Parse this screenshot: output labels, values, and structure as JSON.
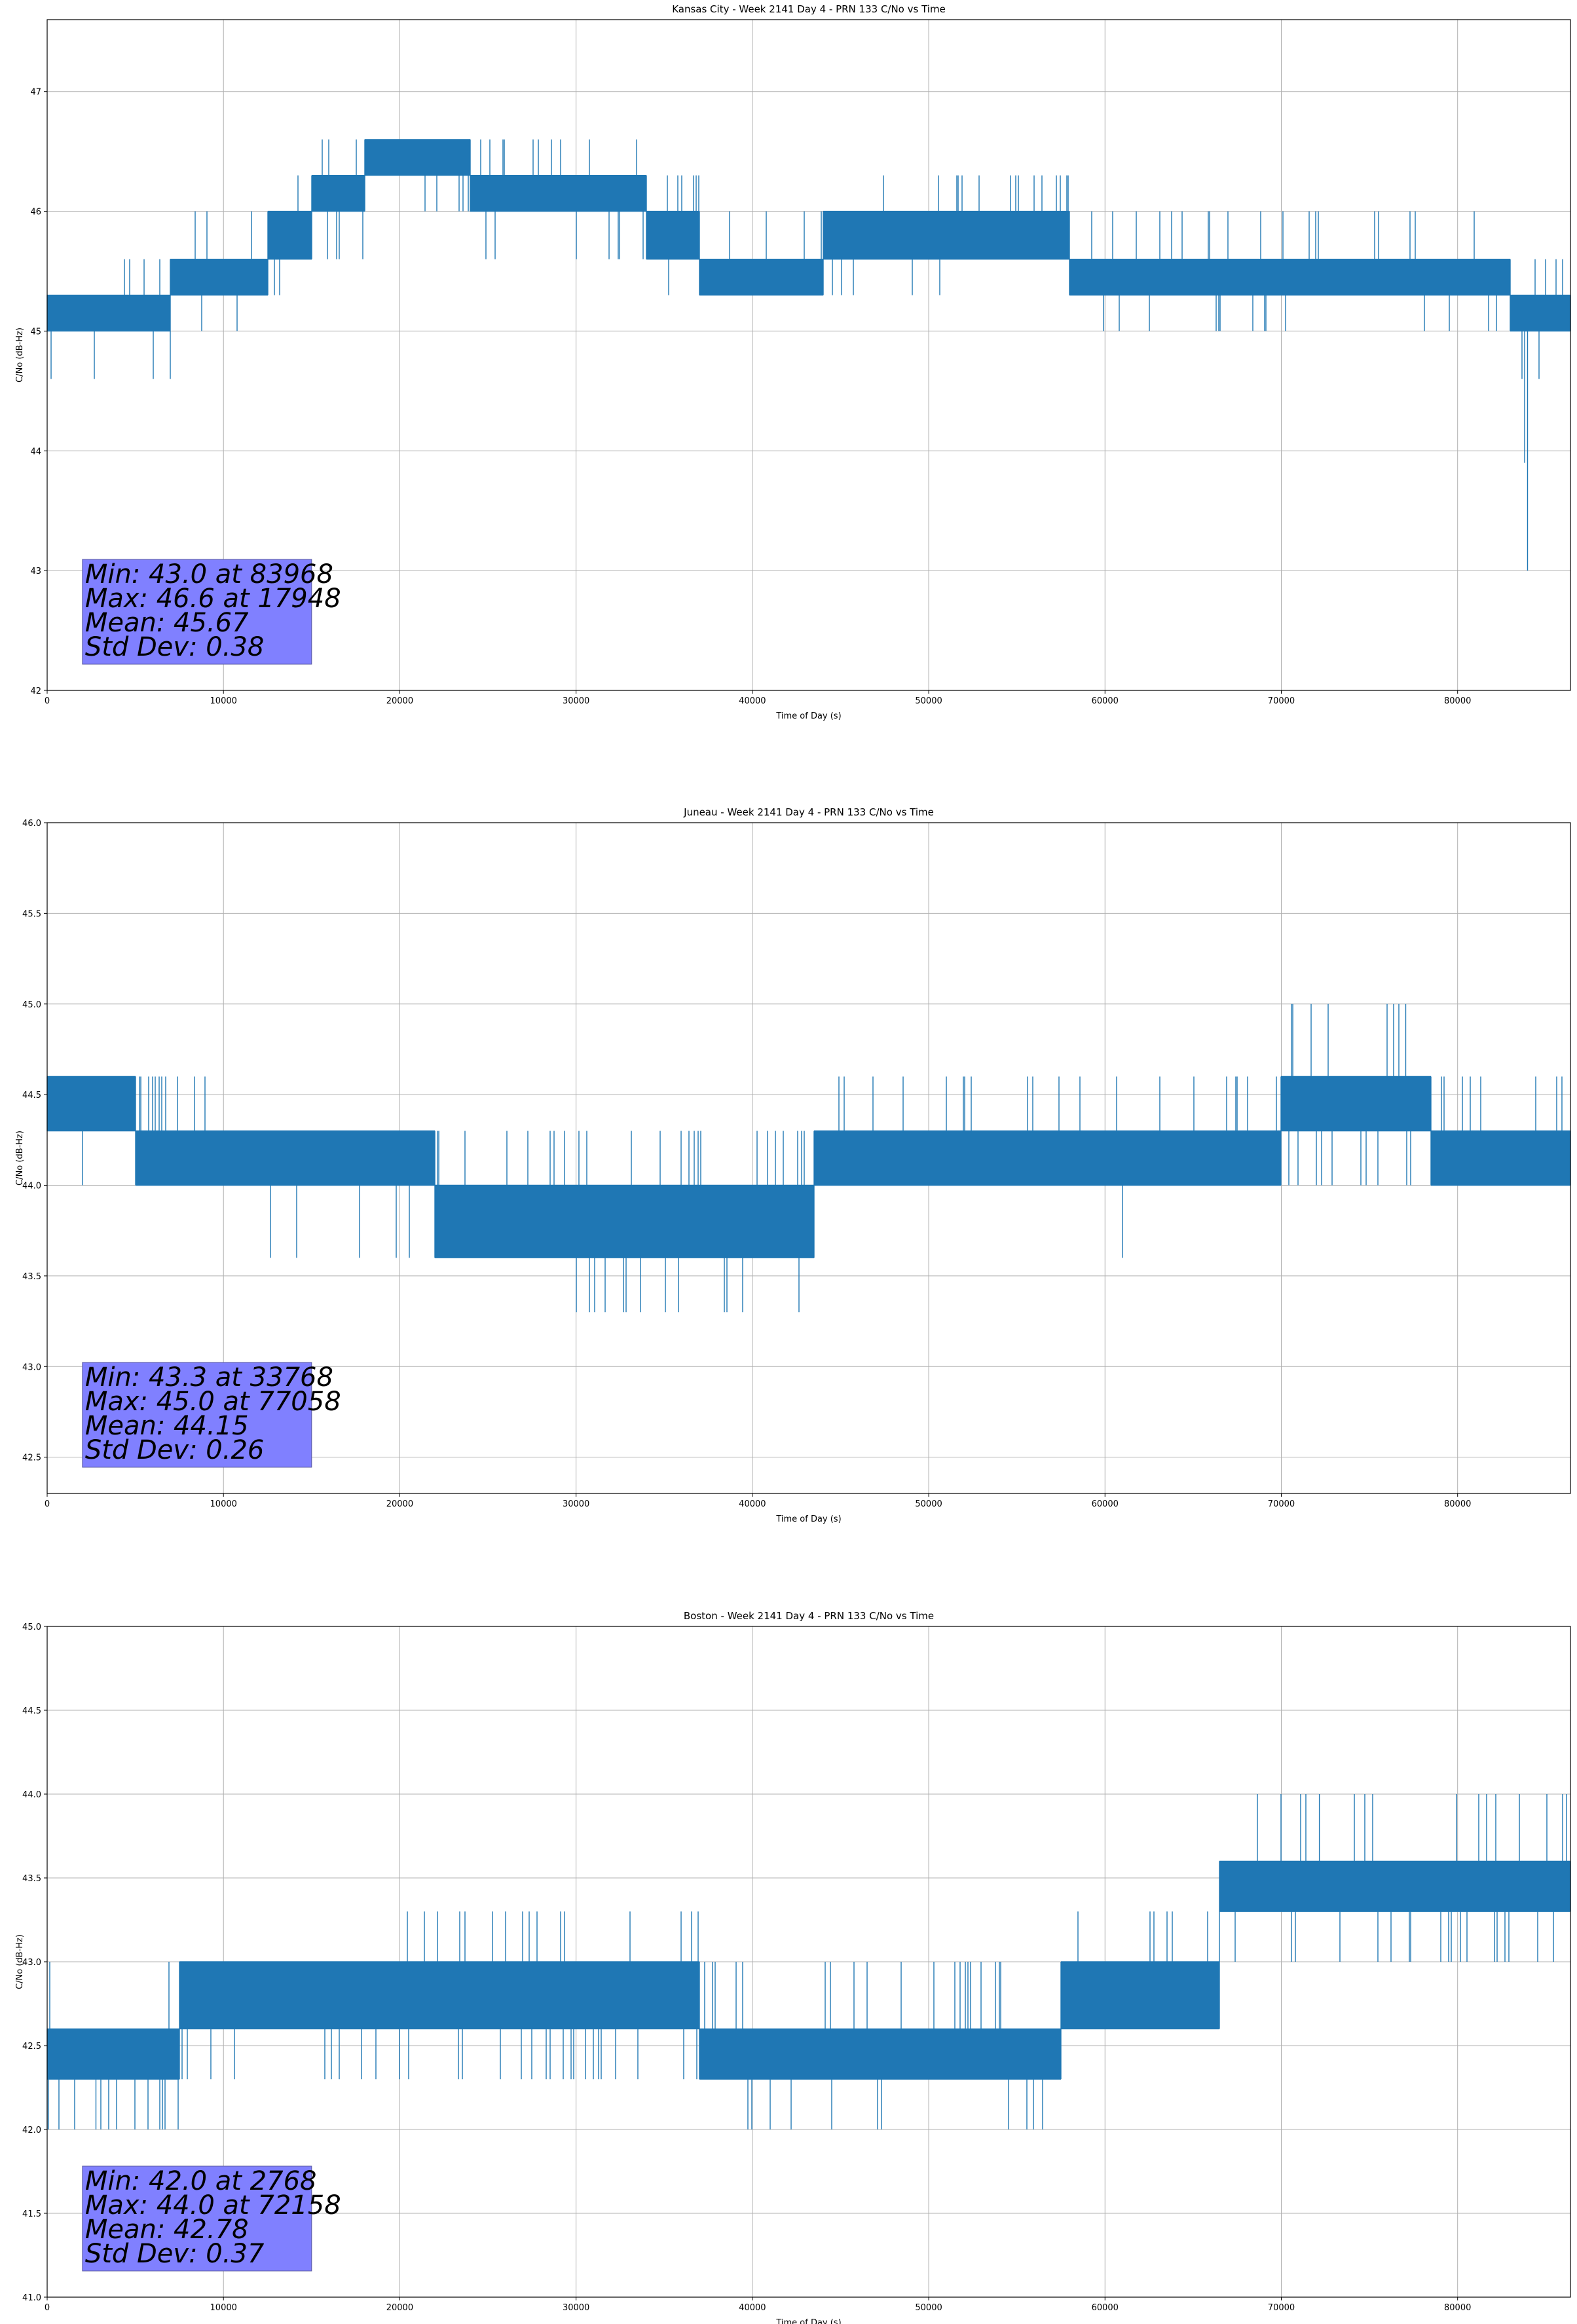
{
  "chart_data": [
    {
      "type": "line",
      "title": "Kansas City - Week 2141 Day 4 - PRN 133 C/No vs Time",
      "xlabel": "Time of Day (s)",
      "ylabel": "C/No (dB-Hz)",
      "xlim": [
        0,
        86400
      ],
      "ylim": [
        42,
        47.6
      ],
      "xticks": [
        0,
        10000,
        20000,
        30000,
        40000,
        50000,
        60000,
        70000,
        80000
      ],
      "yticks": [
        42,
        43,
        44,
        45,
        46,
        47
      ],
      "ytick_labels": [
        "42",
        "43",
        "44",
        "45",
        "46",
        "47"
      ],
      "grid": true,
      "series_color": "#1f77b4",
      "bands": [
        {
          "x0": 0,
          "x1": 7000,
          "lo": 45.0,
          "hi": 45.3,
          "spikes_up": [
            45.6
          ],
          "spikes_down": [
            44.6
          ]
        },
        {
          "x0": 7000,
          "x1": 12500,
          "lo": 45.3,
          "hi": 45.6,
          "spikes_up": [
            46.0
          ],
          "spikes_down": [
            45.0
          ]
        },
        {
          "x0": 12500,
          "x1": 15000,
          "lo": 45.6,
          "hi": 46.0,
          "spikes_up": [
            46.3
          ],
          "spikes_down": [
            45.3
          ]
        },
        {
          "x0": 15000,
          "x1": 18000,
          "lo": 46.0,
          "hi": 46.3,
          "spikes_up": [
            46.6
          ],
          "spikes_down": [
            45.6
          ]
        },
        {
          "x0": 18000,
          "x1": 24000,
          "lo": 46.3,
          "hi": 46.6,
          "spikes_up": [],
          "spikes_down": [
            46.0
          ]
        },
        {
          "x0": 24000,
          "x1": 34000,
          "lo": 46.0,
          "hi": 46.3,
          "spikes_up": [
            46.6
          ],
          "spikes_down": [
            45.6
          ]
        },
        {
          "x0": 34000,
          "x1": 37000,
          "lo": 45.6,
          "hi": 46.0,
          "spikes_up": [
            46.3
          ],
          "spikes_down": [
            45.3
          ]
        },
        {
          "x0": 37000,
          "x1": 44000,
          "lo": 45.3,
          "hi": 45.6,
          "spikes_up": [
            46.0
          ],
          "spikes_down": [
            45.3
          ]
        },
        {
          "x0": 44000,
          "x1": 58000,
          "lo": 45.6,
          "hi": 46.0,
          "spikes_up": [
            46.3
          ],
          "spikes_down": [
            45.3
          ]
        },
        {
          "x0": 58000,
          "x1": 83000,
          "lo": 45.3,
          "hi": 45.6,
          "spikes_up": [
            46.0
          ],
          "spikes_down": [
            45.0
          ]
        },
        {
          "x0": 83000,
          "x1": 86400,
          "lo": 45.0,
          "hi": 45.3,
          "spikes_up": [
            45.6
          ],
          "spikes_down": [
            44.6
          ]
        }
      ],
      "extra_spikes": [
        {
          "x": 83968,
          "y": 43.0
        },
        {
          "x": 83800,
          "y": 43.9
        }
      ],
      "stats": {
        "min": "Min: 43.0 at 83968",
        "max": "Max: 46.6 at 17948",
        "mean": "Mean: 45.67",
        "std": "Std Dev: 0.38"
      }
    },
    {
      "type": "line",
      "title": "Juneau - Week 2141 Day 4 - PRN 133 C/No vs Time",
      "xlabel": "Time of Day (s)",
      "ylabel": "C/No (dB-Hz)",
      "xlim": [
        0,
        86400
      ],
      "ylim": [
        42.3,
        46.0
      ],
      "xticks": [
        0,
        10000,
        20000,
        30000,
        40000,
        50000,
        60000,
        70000,
        80000
      ],
      "yticks": [
        42.5,
        43.0,
        43.5,
        44.0,
        44.5,
        45.0,
        45.5,
        46.0
      ],
      "ytick_labels": [
        "42.5",
        "43.0",
        "43.5",
        "44.0",
        "44.5",
        "45.0",
        "45.5",
        "46.0"
      ],
      "grid": true,
      "series_color": "#1f77b4",
      "bands": [
        {
          "x0": 0,
          "x1": 5000,
          "lo": 44.3,
          "hi": 44.6,
          "spikes_up": [],
          "spikes_down": [
            44.0
          ]
        },
        {
          "x0": 5000,
          "x1": 12500,
          "lo": 44.0,
          "hi": 44.3,
          "spikes_up": [
            44.6
          ],
          "spikes_down": []
        },
        {
          "x0": 12500,
          "x1": 22000,
          "lo": 44.0,
          "hi": 44.3,
          "spikes_up": [],
          "spikes_down": [
            43.6
          ]
        },
        {
          "x0": 22000,
          "x1": 30000,
          "lo": 43.6,
          "hi": 44.0,
          "spikes_up": [
            44.3
          ],
          "spikes_down": []
        },
        {
          "x0": 30000,
          "x1": 43500,
          "lo": 43.6,
          "hi": 44.0,
          "spikes_up": [
            44.3
          ],
          "spikes_down": [
            43.3
          ]
        },
        {
          "x0": 43500,
          "x1": 70000,
          "lo": 44.0,
          "hi": 44.3,
          "spikes_up": [
            44.6
          ],
          "spikes_down": [
            44.0
          ]
        },
        {
          "x0": 70000,
          "x1": 78500,
          "lo": 44.3,
          "hi": 44.6,
          "spikes_up": [
            45.0
          ],
          "spikes_down": [
            44.0
          ]
        },
        {
          "x0": 78500,
          "x1": 86400,
          "lo": 44.0,
          "hi": 44.3,
          "spikes_up": [
            44.6
          ],
          "spikes_down": []
        }
      ],
      "extra_spikes": [
        {
          "x": 61000,
          "y": 43.6
        },
        {
          "x": 77058,
          "y": 45.0
        }
      ],
      "stats": {
        "min": "Min: 43.3 at 33768",
        "max": "Max: 45.0 at 77058",
        "mean": "Mean: 44.15",
        "std": "Std Dev: 0.26"
      }
    },
    {
      "type": "line",
      "title": "Boston - Week 2141 Day 4 - PRN 133 C/No vs Time",
      "xlabel": "Time of Day (s)",
      "ylabel": "C/No (dB-Hz)",
      "xlim": [
        0,
        86400
      ],
      "ylim": [
        41.0,
        45.0
      ],
      "xticks": [
        0,
        10000,
        20000,
        30000,
        40000,
        50000,
        60000,
        70000,
        80000
      ],
      "yticks": [
        41.0,
        41.5,
        42.0,
        42.5,
        43.0,
        43.5,
        44.0,
        44.5,
        45.0
      ],
      "ytick_labels": [
        "41.0",
        "41.5",
        "42.0",
        "42.5",
        "43.0",
        "43.5",
        "44.0",
        "44.5",
        "45.0"
      ],
      "grid": true,
      "series_color": "#1f77b4",
      "bands": [
        {
          "x0": 0,
          "x1": 7500,
          "lo": 42.3,
          "hi": 42.6,
          "spikes_up": [
            43.0
          ],
          "spikes_down": [
            42.0
          ]
        },
        {
          "x0": 7500,
          "x1": 20000,
          "lo": 42.6,
          "hi": 43.0,
          "spikes_up": [],
          "spikes_down": [
            42.3
          ]
        },
        {
          "x0": 20000,
          "x1": 37000,
          "lo": 42.6,
          "hi": 43.0,
          "spikes_up": [
            43.3
          ],
          "spikes_down": [
            42.3
          ]
        },
        {
          "x0": 37000,
          "x1": 57500,
          "lo": 42.3,
          "hi": 42.6,
          "spikes_up": [
            43.0
          ],
          "spikes_down": [
            42.0
          ]
        },
        {
          "x0": 57500,
          "x1": 66500,
          "lo": 42.6,
          "hi": 43.0,
          "spikes_up": [
            43.3
          ],
          "spikes_down": []
        },
        {
          "x0": 66500,
          "x1": 86400,
          "lo": 43.3,
          "hi": 43.6,
          "spikes_up": [
            44.0
          ],
          "spikes_down": [
            43.0
          ]
        }
      ],
      "extra_spikes": [
        {
          "x": 72158,
          "y": 44.0
        },
        {
          "x": 2768,
          "y": 42.0
        }
      ],
      "stats": {
        "min": "Min: 42.0 at 2768",
        "max": "Max: 44.0 at 72158",
        "mean": "Mean: 42.78",
        "std": "Std Dev: 0.37"
      }
    }
  ]
}
